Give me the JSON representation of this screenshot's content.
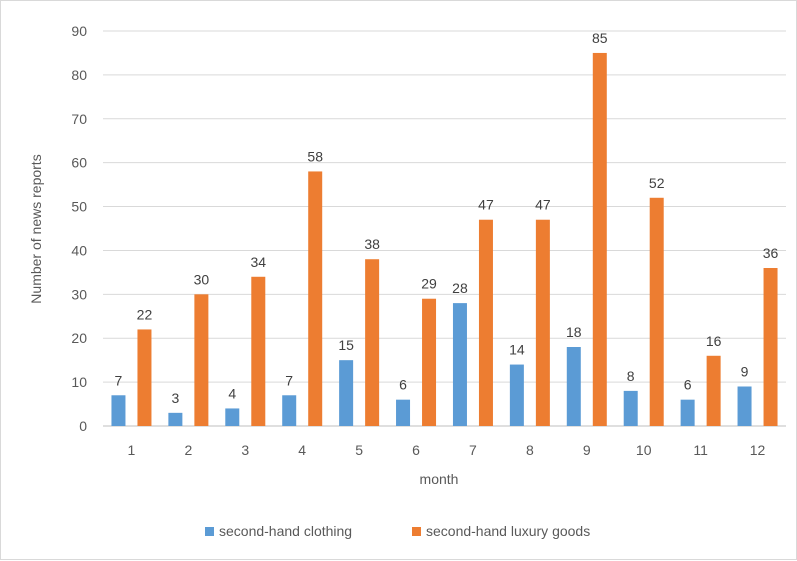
{
  "chart_data": {
    "type": "bar",
    "title": "",
    "xlabel": "month",
    "ylabel": "Number of news reports",
    "ylim": [
      0,
      90
    ],
    "yticks": [
      0,
      10,
      20,
      30,
      40,
      50,
      60,
      70,
      80,
      90
    ],
    "categories": [
      "1",
      "2",
      "3",
      "4",
      "5",
      "6",
      "7",
      "8",
      "9",
      "10",
      "11",
      "12"
    ],
    "series": [
      {
        "name": "second-hand clothing",
        "color": "#5b9bd5",
        "values": [
          7,
          3,
          4,
          7,
          15,
          6,
          28,
          14,
          18,
          8,
          6,
          9
        ]
      },
      {
        "name": "second-hand luxury goods",
        "color": "#ed7d31",
        "values": [
          22,
          30,
          34,
          58,
          38,
          29,
          47,
          47,
          85,
          52,
          16,
          36
        ]
      }
    ],
    "grid": true,
    "legend_position": "bottom"
  }
}
